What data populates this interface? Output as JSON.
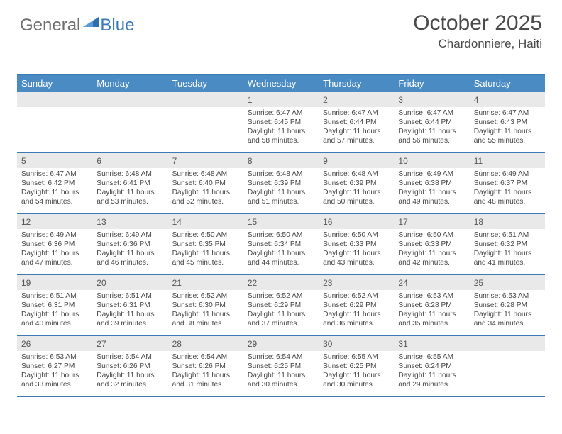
{
  "brand": {
    "general": "General",
    "blue": "Blue",
    "triangle_color": "#2e6fb0"
  },
  "title": {
    "month": "October 2025",
    "location": "Chardonniere, Haiti"
  },
  "colors": {
    "header_bg": "#4a8bc4",
    "header_text": "#ffffff",
    "rule": "#3b79b7",
    "daynum_bg": "#e9e9e9",
    "text": "#444444",
    "page_bg": "#ffffff"
  },
  "fonts": {
    "title_size": 30,
    "location_size": 17,
    "dow_size": 13,
    "daynum_size": 12,
    "body_size": 10.2
  },
  "days_of_week": [
    "Sunday",
    "Monday",
    "Tuesday",
    "Wednesday",
    "Thursday",
    "Friday",
    "Saturday"
  ],
  "weeks": [
    {
      "nums": [
        "",
        "",
        "",
        "1",
        "2",
        "3",
        "4"
      ],
      "cells": [
        {
          "sunrise": "",
          "sunset": "",
          "day_a": "",
          "day_b": ""
        },
        {
          "sunrise": "",
          "sunset": "",
          "day_a": "",
          "day_b": ""
        },
        {
          "sunrise": "",
          "sunset": "",
          "day_a": "",
          "day_b": ""
        },
        {
          "sunrise": "Sunrise: 6:47 AM",
          "sunset": "Sunset: 6:45 PM",
          "day_a": "Daylight: 11 hours",
          "day_b": "and 58 minutes."
        },
        {
          "sunrise": "Sunrise: 6:47 AM",
          "sunset": "Sunset: 6:44 PM",
          "day_a": "Daylight: 11 hours",
          "day_b": "and 57 minutes."
        },
        {
          "sunrise": "Sunrise: 6:47 AM",
          "sunset": "Sunset: 6:44 PM",
          "day_a": "Daylight: 11 hours",
          "day_b": "and 56 minutes."
        },
        {
          "sunrise": "Sunrise: 6:47 AM",
          "sunset": "Sunset: 6:43 PM",
          "day_a": "Daylight: 11 hours",
          "day_b": "and 55 minutes."
        }
      ]
    },
    {
      "nums": [
        "5",
        "6",
        "7",
        "8",
        "9",
        "10",
        "11"
      ],
      "cells": [
        {
          "sunrise": "Sunrise: 6:47 AM",
          "sunset": "Sunset: 6:42 PM",
          "day_a": "Daylight: 11 hours",
          "day_b": "and 54 minutes."
        },
        {
          "sunrise": "Sunrise: 6:48 AM",
          "sunset": "Sunset: 6:41 PM",
          "day_a": "Daylight: 11 hours",
          "day_b": "and 53 minutes."
        },
        {
          "sunrise": "Sunrise: 6:48 AM",
          "sunset": "Sunset: 6:40 PM",
          "day_a": "Daylight: 11 hours",
          "day_b": "and 52 minutes."
        },
        {
          "sunrise": "Sunrise: 6:48 AM",
          "sunset": "Sunset: 6:39 PM",
          "day_a": "Daylight: 11 hours",
          "day_b": "and 51 minutes."
        },
        {
          "sunrise": "Sunrise: 6:48 AM",
          "sunset": "Sunset: 6:39 PM",
          "day_a": "Daylight: 11 hours",
          "day_b": "and 50 minutes."
        },
        {
          "sunrise": "Sunrise: 6:49 AM",
          "sunset": "Sunset: 6:38 PM",
          "day_a": "Daylight: 11 hours",
          "day_b": "and 49 minutes."
        },
        {
          "sunrise": "Sunrise: 6:49 AM",
          "sunset": "Sunset: 6:37 PM",
          "day_a": "Daylight: 11 hours",
          "day_b": "and 48 minutes."
        }
      ]
    },
    {
      "nums": [
        "12",
        "13",
        "14",
        "15",
        "16",
        "17",
        "18"
      ],
      "cells": [
        {
          "sunrise": "Sunrise: 6:49 AM",
          "sunset": "Sunset: 6:36 PM",
          "day_a": "Daylight: 11 hours",
          "day_b": "and 47 minutes."
        },
        {
          "sunrise": "Sunrise: 6:49 AM",
          "sunset": "Sunset: 6:36 PM",
          "day_a": "Daylight: 11 hours",
          "day_b": "and 46 minutes."
        },
        {
          "sunrise": "Sunrise: 6:50 AM",
          "sunset": "Sunset: 6:35 PM",
          "day_a": "Daylight: 11 hours",
          "day_b": "and 45 minutes."
        },
        {
          "sunrise": "Sunrise: 6:50 AM",
          "sunset": "Sunset: 6:34 PM",
          "day_a": "Daylight: 11 hours",
          "day_b": "and 44 minutes."
        },
        {
          "sunrise": "Sunrise: 6:50 AM",
          "sunset": "Sunset: 6:33 PM",
          "day_a": "Daylight: 11 hours",
          "day_b": "and 43 minutes."
        },
        {
          "sunrise": "Sunrise: 6:50 AM",
          "sunset": "Sunset: 6:33 PM",
          "day_a": "Daylight: 11 hours",
          "day_b": "and 42 minutes."
        },
        {
          "sunrise": "Sunrise: 6:51 AM",
          "sunset": "Sunset: 6:32 PM",
          "day_a": "Daylight: 11 hours",
          "day_b": "and 41 minutes."
        }
      ]
    },
    {
      "nums": [
        "19",
        "20",
        "21",
        "22",
        "23",
        "24",
        "25"
      ],
      "cells": [
        {
          "sunrise": "Sunrise: 6:51 AM",
          "sunset": "Sunset: 6:31 PM",
          "day_a": "Daylight: 11 hours",
          "day_b": "and 40 minutes."
        },
        {
          "sunrise": "Sunrise: 6:51 AM",
          "sunset": "Sunset: 6:31 PM",
          "day_a": "Daylight: 11 hours",
          "day_b": "and 39 minutes."
        },
        {
          "sunrise": "Sunrise: 6:52 AM",
          "sunset": "Sunset: 6:30 PM",
          "day_a": "Daylight: 11 hours",
          "day_b": "and 38 minutes."
        },
        {
          "sunrise": "Sunrise: 6:52 AM",
          "sunset": "Sunset: 6:29 PM",
          "day_a": "Daylight: 11 hours",
          "day_b": "and 37 minutes."
        },
        {
          "sunrise": "Sunrise: 6:52 AM",
          "sunset": "Sunset: 6:29 PM",
          "day_a": "Daylight: 11 hours",
          "day_b": "and 36 minutes."
        },
        {
          "sunrise": "Sunrise: 6:53 AM",
          "sunset": "Sunset: 6:28 PM",
          "day_a": "Daylight: 11 hours",
          "day_b": "and 35 minutes."
        },
        {
          "sunrise": "Sunrise: 6:53 AM",
          "sunset": "Sunset: 6:28 PM",
          "day_a": "Daylight: 11 hours",
          "day_b": "and 34 minutes."
        }
      ]
    },
    {
      "nums": [
        "26",
        "27",
        "28",
        "29",
        "30",
        "31",
        ""
      ],
      "cells": [
        {
          "sunrise": "Sunrise: 6:53 AM",
          "sunset": "Sunset: 6:27 PM",
          "day_a": "Daylight: 11 hours",
          "day_b": "and 33 minutes."
        },
        {
          "sunrise": "Sunrise: 6:54 AM",
          "sunset": "Sunset: 6:26 PM",
          "day_a": "Daylight: 11 hours",
          "day_b": "and 32 minutes."
        },
        {
          "sunrise": "Sunrise: 6:54 AM",
          "sunset": "Sunset: 6:26 PM",
          "day_a": "Daylight: 11 hours",
          "day_b": "and 31 minutes."
        },
        {
          "sunrise": "Sunrise: 6:54 AM",
          "sunset": "Sunset: 6:25 PM",
          "day_a": "Daylight: 11 hours",
          "day_b": "and 30 minutes."
        },
        {
          "sunrise": "Sunrise: 6:55 AM",
          "sunset": "Sunset: 6:25 PM",
          "day_a": "Daylight: 11 hours",
          "day_b": "and 30 minutes."
        },
        {
          "sunrise": "Sunrise: 6:55 AM",
          "sunset": "Sunset: 6:24 PM",
          "day_a": "Daylight: 11 hours",
          "day_b": "and 29 minutes."
        },
        {
          "sunrise": "",
          "sunset": "",
          "day_a": "",
          "day_b": ""
        }
      ]
    }
  ]
}
